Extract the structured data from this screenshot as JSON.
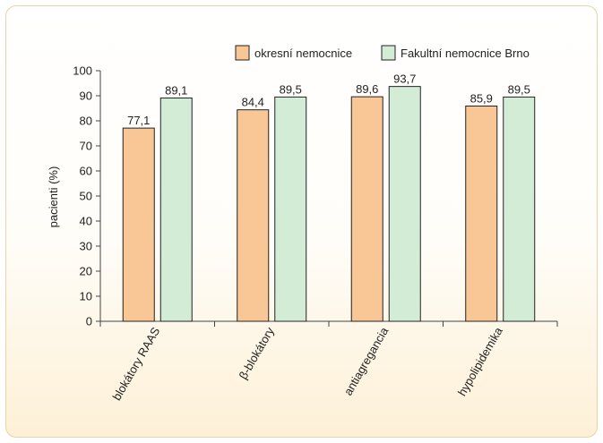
{
  "chart_data": {
    "type": "bar",
    "categories": [
      "blokátory RAAS",
      "β-blokátory",
      "antiagregancia",
      "hypolipidemika"
    ],
    "series": [
      {
        "name": "okresní nemocnice",
        "values": [
          77.1,
          84.4,
          89.6,
          85.9
        ],
        "labels": [
          "77,1",
          "84,4",
          "89,6",
          "85,9"
        ],
        "color": "#f8c795"
      },
      {
        "name": "Fakultní nemocnice Brno",
        "values": [
          89.1,
          89.5,
          93.7,
          89.5
        ],
        "labels": [
          "89,1",
          "89,5",
          "93,7",
          "89,5"
        ],
        "color": "#d3ecd5"
      }
    ],
    "ylabel": "pacienti (%)",
    "ylim": [
      0,
      100
    ],
    "yticks": [
      0,
      10,
      20,
      30,
      40,
      50,
      60,
      70,
      80,
      90,
      100
    ],
    "grid": false,
    "legend_position": "top-right"
  }
}
